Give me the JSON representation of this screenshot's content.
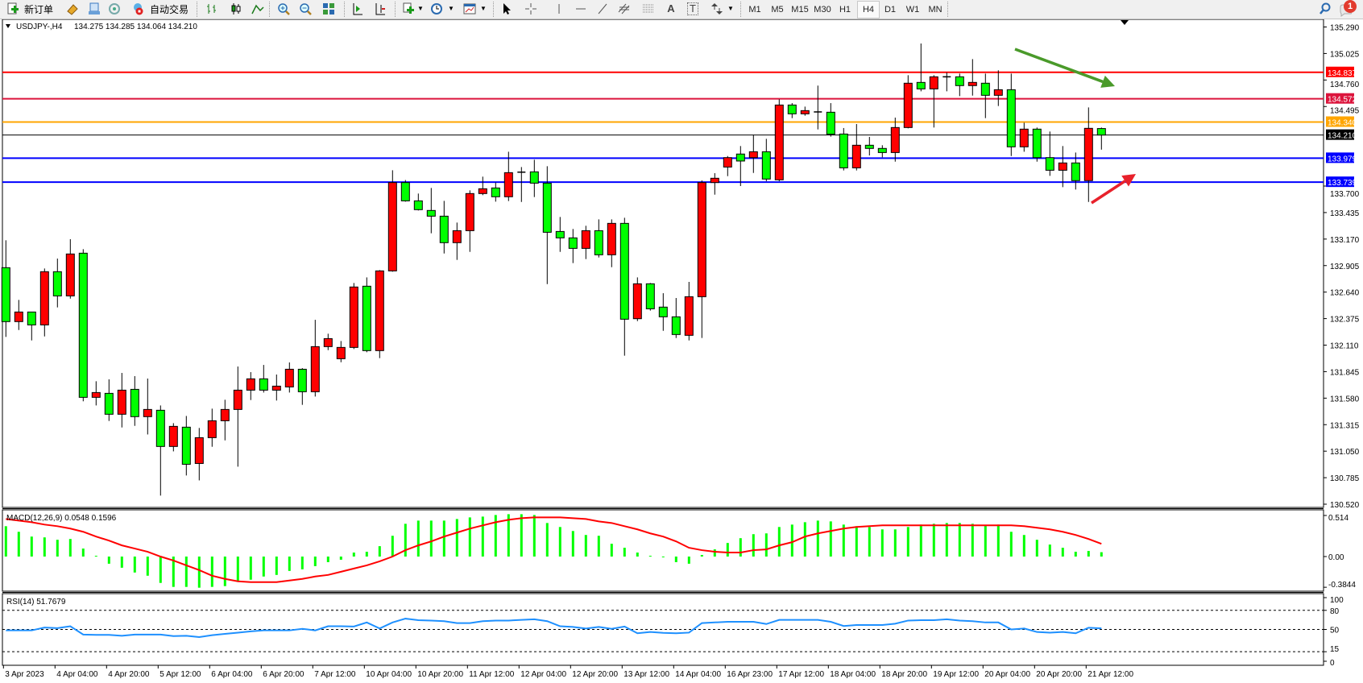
{
  "toolbar": {
    "new_order_label": "新订单",
    "auto_trading_label": "自动交易",
    "timeframes": [
      "M1",
      "M5",
      "M15",
      "M30",
      "H1",
      "H4",
      "D1",
      "W1",
      "MN"
    ],
    "active_timeframe": "H4",
    "notification_count": "1",
    "icons": [
      "new-order-icon",
      "market-watch-icon",
      "navigator-icon",
      "signals-icon",
      "auto-trading-icon",
      "bar-chart-icon",
      "candlestick-icon",
      "line-chart-icon",
      "zoom-in-icon",
      "zoom-out-icon",
      "tile-windows-icon",
      "chart-shift-icon",
      "autoscroll-icon",
      "indicators-icon",
      "periods-icon",
      "templates-icon",
      "cursor-icon",
      "crosshair-icon",
      "vertical-line-icon",
      "horizontal-line-icon",
      "trendline-icon",
      "channel-icon",
      "fibonacci-icon",
      "text-icon",
      "text-label-icon",
      "arrows-icon",
      "search-icon",
      "notification-icon"
    ],
    "text_tool_label": "A",
    "text_label_tool_label": "T"
  },
  "chart": {
    "symbol_label": "USDJPY-,H4",
    "ohlc_text": "134.275 134.285 134.064 134.210",
    "up_color": "#ff0000",
    "down_color": "#00ff00",
    "price_ticks": [
      "135.290",
      "135.025",
      "134.760",
      "134.495",
      "133.700",
      "133.435",
      "133.170",
      "132.905",
      "132.640",
      "132.375",
      "132.110",
      "131.845",
      "131.580",
      "131.315",
      "131.050",
      "130.785",
      "130.520"
    ],
    "levels": [
      {
        "price": "134.837",
        "color": "#ff0000"
      },
      {
        "price": "134.572",
        "color": "#dc143c"
      },
      {
        "price": "134.340",
        "color": "#ffa500"
      },
      {
        "price": "134.210",
        "color": "#000000"
      },
      {
        "price": "133.979",
        "color": "#0000ff"
      },
      {
        "price": "133.739",
        "color": "#0000ff"
      }
    ],
    "annotations": [
      {
        "type": "arrow",
        "color": "#4a9a2a",
        "meaning": "down"
      },
      {
        "type": "arrow",
        "color": "#e8212b",
        "meaning": "up"
      }
    ]
  },
  "chart_data": {
    "type": "candlestick",
    "ylim": [
      130.52,
      135.29
    ],
    "candles_ohlc": [
      [
        132.884,
        133.158,
        132.192,
        132.345
      ],
      [
        132.345,
        132.562,
        132.261,
        132.441
      ],
      [
        132.441,
        132.441,
        132.157,
        132.312
      ],
      [
        132.312,
        132.876,
        132.197,
        132.844
      ],
      [
        132.844,
        132.975,
        132.487,
        132.602
      ],
      [
        132.602,
        133.169,
        132.575,
        133.021
      ],
      [
        133.029,
        133.069,
        131.548,
        131.588
      ],
      [
        131.588,
        131.749,
        131.507,
        131.636
      ],
      [
        131.628,
        131.768,
        131.352,
        131.419
      ],
      [
        131.419,
        131.832,
        131.287,
        131.66
      ],
      [
        131.668,
        131.8,
        131.303,
        131.395
      ],
      [
        131.395,
        131.776,
        131.217,
        131.467
      ],
      [
        131.459,
        131.507,
        130.606,
        131.097
      ],
      [
        131.097,
        131.33,
        131.048,
        131.298
      ],
      [
        131.29,
        131.402,
        130.807,
        130.919
      ],
      [
        130.927,
        131.282,
        130.758,
        131.185
      ],
      [
        131.185,
        131.475,
        131.094,
        131.354
      ],
      [
        131.354,
        131.564,
        131.158,
        131.467
      ],
      [
        131.467,
        131.896,
        130.895,
        131.66
      ],
      [
        131.66,
        131.84,
        131.561,
        131.773
      ],
      [
        131.773,
        131.912,
        131.636,
        131.66
      ],
      [
        131.66,
        131.816,
        131.556,
        131.7
      ],
      [
        131.692,
        131.937,
        131.636,
        131.869
      ],
      [
        131.869,
        131.88,
        131.513,
        131.644
      ],
      [
        131.644,
        132.363,
        131.596,
        132.095
      ],
      [
        132.095,
        132.224,
        132.06,
        132.175
      ],
      [
        131.974,
        132.151,
        131.939,
        132.087
      ],
      [
        132.087,
        132.731,
        132.071,
        132.691
      ],
      [
        132.699,
        132.787,
        132.039,
        132.055
      ],
      [
        132.055,
        132.86,
        131.98,
        132.852
      ],
      [
        132.852,
        133.858,
        132.844,
        133.735
      ],
      [
        133.735,
        133.76,
        133.544,
        133.552
      ],
      [
        133.552,
        133.625,
        133.456,
        133.464
      ],
      [
        133.456,
        133.681,
        133.228,
        133.399
      ],
      [
        133.399,
        133.552,
        133.026,
        133.134
      ],
      [
        133.134,
        133.335,
        132.962,
        133.254
      ],
      [
        133.254,
        133.657,
        133.042,
        133.625
      ],
      [
        133.625,
        133.794,
        133.609,
        133.673
      ],
      [
        133.681,
        133.735,
        133.544,
        133.593
      ],
      [
        133.593,
        134.043,
        133.55,
        133.834
      ],
      [
        133.839,
        133.89,
        133.541,
        133.839
      ],
      [
        133.842,
        133.963,
        133.59,
        133.729
      ],
      [
        133.729,
        133.898,
        132.72,
        133.238
      ],
      [
        133.246,
        133.391,
        133.042,
        133.182
      ],
      [
        133.182,
        133.271,
        132.93,
        133.077
      ],
      [
        133.077,
        133.303,
        132.97,
        133.254
      ],
      [
        133.254,
        133.367,
        132.986,
        133.013
      ],
      [
        133.013,
        133.367,
        132.889,
        133.327
      ],
      [
        133.327,
        133.383,
        132.004,
        132.369
      ],
      [
        132.374,
        132.787,
        132.35,
        132.723
      ],
      [
        132.723,
        132.731,
        132.455,
        132.473
      ],
      [
        132.49,
        132.629,
        132.253,
        132.393
      ],
      [
        132.393,
        132.581,
        132.181,
        132.216
      ],
      [
        132.208,
        132.742,
        132.157,
        132.594
      ],
      [
        132.594,
        133.756,
        132.181,
        133.735
      ],
      [
        133.735,
        133.829,
        133.614,
        133.778
      ],
      [
        133.89,
        134.0,
        133.799,
        133.984
      ],
      [
        134.02,
        134.1,
        133.7,
        133.95
      ],
      [
        133.984,
        134.213,
        133.831,
        134.043
      ],
      [
        134.043,
        134.172,
        133.748,
        133.77
      ],
      [
        133.762,
        134.567,
        133.748,
        134.51
      ],
      [
        134.51,
        134.529,
        134.379,
        134.422
      ],
      [
        134.422,
        134.494,
        134.403,
        134.454
      ],
      [
        134.441,
        134.704,
        134.266,
        134.441
      ],
      [
        134.438,
        134.529,
        134.194,
        134.218
      ],
      [
        134.22,
        134.28,
        133.856,
        133.882
      ],
      [
        133.882,
        134.32,
        133.856,
        134.108
      ],
      [
        134.108,
        134.191,
        134.006,
        134.076
      ],
      [
        134.076,
        134.108,
        133.987,
        134.035
      ],
      [
        134.035,
        134.384,
        133.944,
        134.285
      ],
      [
        134.285,
        134.808,
        134.277,
        134.728
      ],
      [
        134.736,
        135.125,
        134.647,
        134.671
      ],
      [
        134.671,
        134.808,
        134.285,
        134.792
      ],
      [
        134.792,
        134.835,
        134.647,
        134.792
      ],
      [
        134.792,
        134.824,
        134.599,
        134.704
      ],
      [
        134.704,
        134.969,
        134.604,
        134.736
      ],
      [
        134.728,
        134.824,
        134.379,
        134.607
      ],
      [
        134.607,
        134.857,
        134.5,
        134.663
      ],
      [
        134.663,
        134.824,
        134.0,
        134.092
      ],
      [
        134.092,
        134.333,
        134.043,
        134.269
      ],
      [
        134.269,
        134.285,
        133.944,
        133.984
      ],
      [
        133.984,
        134.245,
        133.802,
        133.858
      ],
      [
        133.858,
        134.1,
        133.689,
        133.931
      ],
      [
        133.931,
        134.035,
        133.665,
        133.754
      ],
      [
        133.754,
        134.486,
        133.541,
        134.277
      ],
      [
        134.275,
        134.285,
        134.064,
        134.21
      ]
    ],
    "macd": {
      "label": "MACD(12,26,9) 0.0548 0.1596",
      "ylim": [
        -0.3844,
        0.514
      ],
      "ticks": [
        "0.514",
        "0.00",
        "-0.3844"
      ],
      "histogram_color": "#00ff00",
      "signal_color": "#ff0000",
      "histogram": [
        0.38,
        0.31,
        0.25,
        0.24,
        0.21,
        0.22,
        0.1,
        0.01,
        -0.09,
        -0.14,
        -0.2,
        -0.24,
        -0.33,
        -0.38,
        -0.38,
        -0.39,
        -0.38,
        -0.37,
        -0.31,
        -0.29,
        -0.25,
        -0.23,
        -0.18,
        -0.16,
        -0.12,
        -0.07,
        -0.04,
        0.05,
        0.06,
        0.13,
        0.26,
        0.41,
        0.45,
        0.45,
        0.45,
        0.47,
        0.49,
        0.5,
        0.52,
        0.53,
        0.53,
        0.52,
        0.42,
        0.37,
        0.32,
        0.27,
        0.26,
        0.16,
        0.11,
        0.05,
        0.01,
        -0.01,
        -0.07,
        -0.09,
        0.02,
        0.09,
        0.17,
        0.23,
        0.28,
        0.29,
        0.37,
        0.4,
        0.43,
        0.45,
        0.44,
        0.4,
        0.38,
        0.37,
        0.34,
        0.34,
        0.37,
        0.4,
        0.41,
        0.42,
        0.42,
        0.41,
        0.39,
        0.4,
        0.31,
        0.27,
        0.21,
        0.15,
        0.11,
        0.06,
        0.07,
        0.0548
      ],
      "signal": [
        0.47,
        0.45,
        0.43,
        0.4,
        0.38,
        0.35,
        0.31,
        0.25,
        0.2,
        0.14,
        0.1,
        0.06,
        0.0,
        -0.05,
        -0.11,
        -0.17,
        -0.24,
        -0.28,
        -0.31,
        -0.32,
        -0.32,
        -0.32,
        -0.3,
        -0.28,
        -0.25,
        -0.23,
        -0.19,
        -0.15,
        -0.11,
        -0.06,
        0.0,
        0.08,
        0.14,
        0.19,
        0.25,
        0.3,
        0.35,
        0.39,
        0.43,
        0.46,
        0.48,
        0.49,
        0.49,
        0.49,
        0.48,
        0.47,
        0.44,
        0.42,
        0.38,
        0.34,
        0.29,
        0.25,
        0.19,
        0.11,
        0.08,
        0.06,
        0.05,
        0.05,
        0.08,
        0.09,
        0.14,
        0.18,
        0.25,
        0.29,
        0.32,
        0.35,
        0.37,
        0.38,
        0.39,
        0.39,
        0.39,
        0.39,
        0.39,
        0.39,
        0.39,
        0.39,
        0.39,
        0.39,
        0.39,
        0.38,
        0.36,
        0.34,
        0.31,
        0.27,
        0.22,
        0.1596
      ]
    },
    "rsi": {
      "label": "RSI(14) 51.7679",
      "ylim": [
        0,
        100
      ],
      "ticks": [
        "100",
        "80",
        "50",
        "15",
        "0"
      ],
      "levels": [
        80,
        50,
        15
      ],
      "line_color": "#1e90ff",
      "values": [
        48.5,
        48.5,
        48.5,
        53,
        52,
        55,
        42,
        41.5,
        41.5,
        40,
        42,
        42,
        42,
        39.5,
        40,
        38,
        41,
        43,
        45,
        47,
        48.5,
        48.5,
        48.5,
        51,
        48.5,
        55,
        55,
        54.6,
        61,
        51.5,
        61,
        67,
        64.6,
        64,
        63,
        60,
        60,
        63,
        64,
        64,
        65,
        66,
        63,
        55,
        54,
        51.5,
        54,
        51,
        54.6,
        44,
        46,
        44.6,
        44,
        45,
        60,
        61,
        62,
        62,
        62,
        58.5,
        65,
        65,
        65,
        65,
        62,
        55.4,
        57,
        57,
        57,
        59,
        64,
        64.6,
        64.6,
        66,
        64,
        63,
        61,
        61,
        50,
        51.5,
        46,
        45,
        46,
        44,
        52.7,
        51.7679
      ]
    },
    "time_labels": [
      "3 Apr 2023",
      "4 Apr 04:00",
      "4 Apr 20:00",
      "5 Apr 12:00",
      "6 Apr 04:00",
      "6 Apr 20:00",
      "7 Apr 12:00",
      "10 Apr 04:00",
      "10 Apr 20:00",
      "11 Apr 12:00",
      "12 Apr 04:00",
      "12 Apr 20:00",
      "13 Apr 12:00",
      "14 Apr 04:00",
      "16 Apr 23:00",
      "17 Apr 12:00",
      "18 Apr 04:00",
      "18 Apr 20:00",
      "19 Apr 12:00",
      "20 Apr 04:00",
      "20 Apr 20:00",
      "21 Apr 12:00"
    ]
  }
}
